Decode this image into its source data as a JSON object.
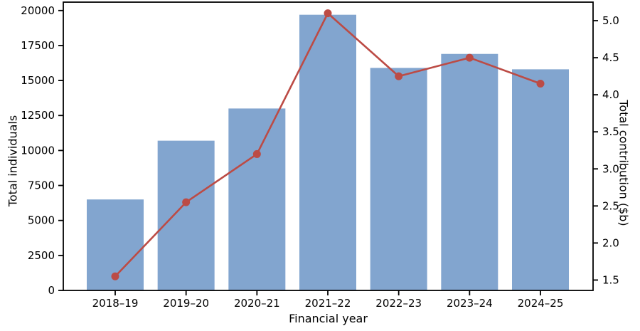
{
  "chart_data": {
    "type": "bar+line",
    "title": "",
    "xlabel": "Financial year",
    "categories": [
      "2018–19",
      "2019–20",
      "2020–21",
      "2021–22",
      "2022–23",
      "2023–24",
      "2024–25"
    ],
    "series": [
      {
        "name": "Total individuals",
        "type": "bar",
        "axis": "left",
        "color": "#82a5cf",
        "values": [
          6500,
          10700,
          13000,
          19700,
          15900,
          16900,
          15800
        ]
      },
      {
        "name": "Total contribution ($b)",
        "type": "line",
        "axis": "right",
        "color": "#bc4b45",
        "marker": "circle",
        "values": [
          1.55,
          2.55,
          3.2,
          5.1,
          4.25,
          4.5,
          4.15
        ]
      }
    ],
    "axes": {
      "left": {
        "label": "Total individuals",
        "ticks": [
          0,
          2500,
          5000,
          7500,
          10000,
          12500,
          15000,
          17500,
          20000
        ],
        "lim": [
          0,
          20600
        ]
      },
      "right": {
        "label": "Total contribution ($b)",
        "ticks": [
          1.5,
          2.0,
          2.5,
          3.0,
          3.5,
          4.0,
          4.5,
          5.0
        ],
        "lim": [
          1.36,
          5.25
        ]
      }
    },
    "grid": false,
    "legend": "none",
    "frame_color": "#000000",
    "tick_label_color": "#000000"
  }
}
